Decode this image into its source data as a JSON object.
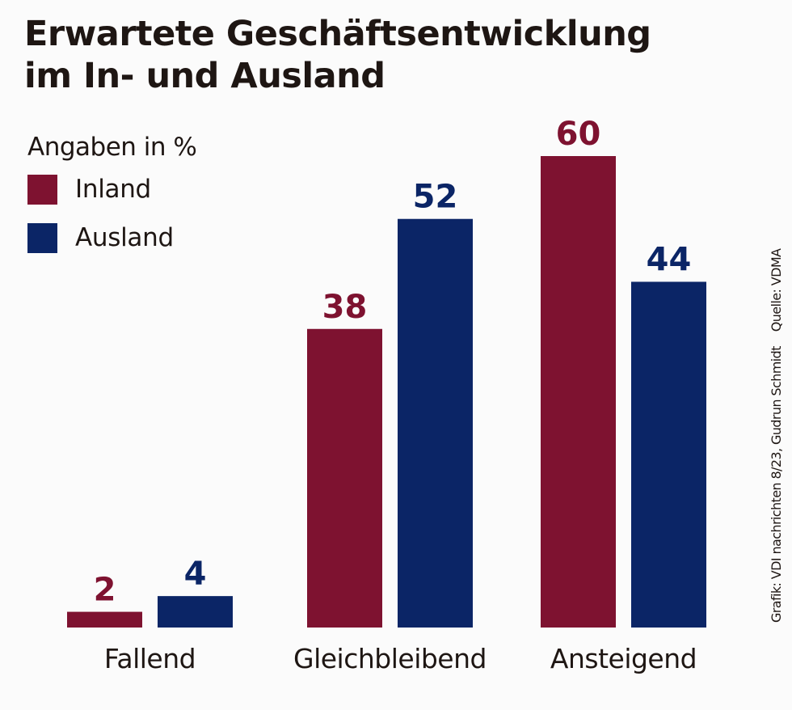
{
  "chart_data": {
    "type": "bar",
    "title": "Erwartete Geschäftsentwicklung im In- und Ausland",
    "title_lines": [
      "Erwartete Geschäftsentwicklung",
      "im In- und Ausland"
    ],
    "subtitle": "Angaben in %",
    "categories": [
      "Fallend",
      "Gleichbleibend",
      "Ansteigend"
    ],
    "series": [
      {
        "name": "Inland",
        "color": "#7e1230",
        "values": [
          2,
          38,
          60
        ]
      },
      {
        "name": "Ausland",
        "color": "#0b2566",
        "values": [
          4,
          52,
          44
        ]
      }
    ],
    "xlabel": "",
    "ylabel": "",
    "ylim": [
      0,
      60
    ],
    "grid": false,
    "legend_position": "top-left",
    "data_labels": true,
    "credit": "Grafik: VDI nachrichten 8/23, Gudrun Schmidt",
    "source": "Quelle: VDMA"
  }
}
